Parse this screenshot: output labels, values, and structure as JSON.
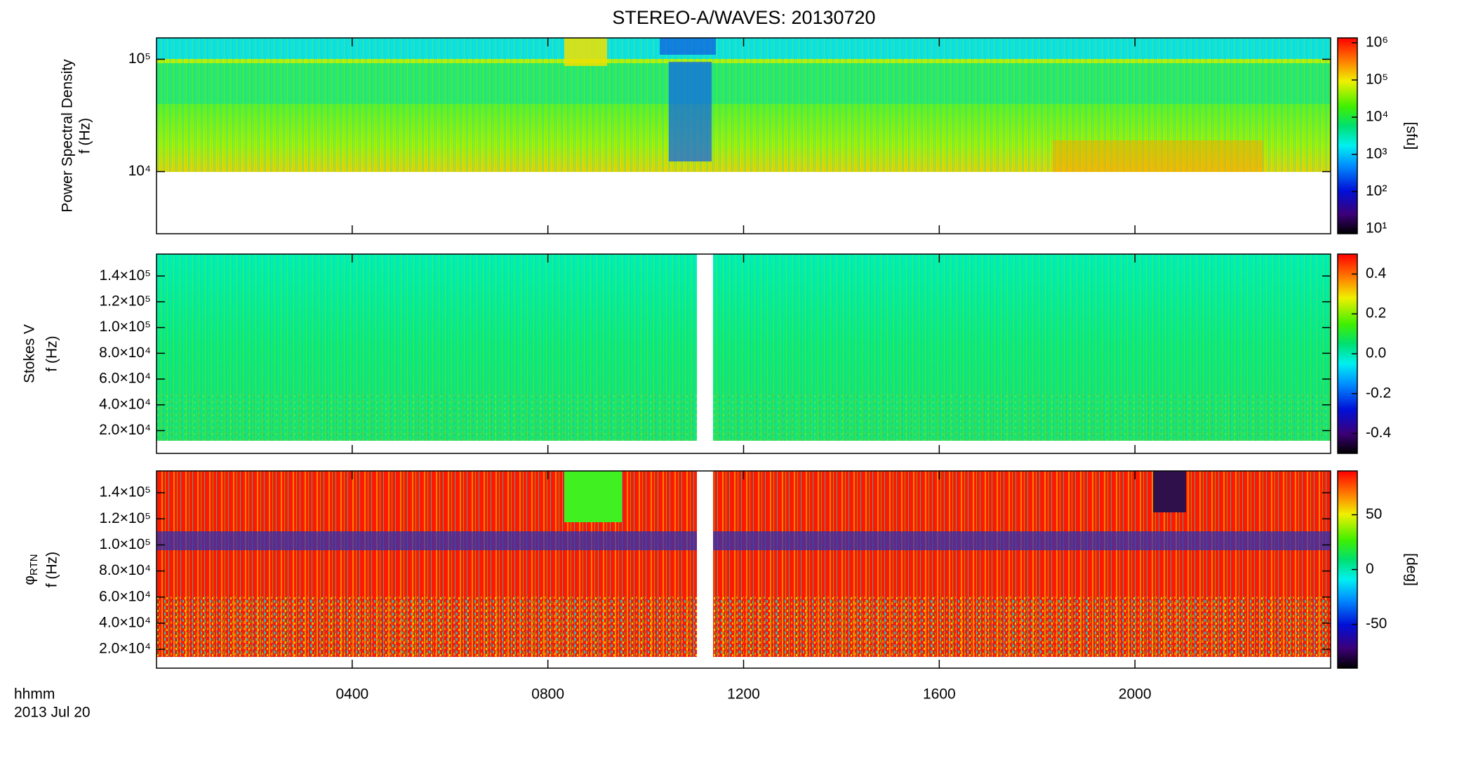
{
  "chart_data": [
    {
      "type": "heatmap",
      "title": "STEREO-A/WAVES: 20130720",
      "y_label": "Power Spectral Density",
      "y_unit_label": "f (Hz)",
      "ylog": true,
      "ylim": [
        2800,
        155000
      ],
      "yticks": [
        {
          "value": 10000,
          "label": "10⁴"
        },
        {
          "value": 100000,
          "label": "10⁵"
        }
      ],
      "colormap": "rainbow",
      "colorbar_log": true,
      "clim": [
        7.4,
        1350000
      ],
      "cticks": [
        {
          "value": 10,
          "label": "10¹"
        },
        {
          "value": 100,
          "label": "10²"
        },
        {
          "value": 1000,
          "label": "10³"
        },
        {
          "value": 10000,
          "label": "10⁴"
        },
        {
          "value": 100000,
          "label": "10⁵"
        },
        {
          "value": 1000000,
          "label": "10⁶"
        }
      ],
      "colorbar_label": "[sfu]"
    },
    {
      "type": "heatmap",
      "y_label": "Stokes V",
      "y_unit_label": "f (Hz)",
      "ylog": false,
      "ylim": [
        2300,
        157000
      ],
      "yticks": [
        {
          "value": 20000,
          "label": "2.0×10⁴"
        },
        {
          "value": 40000,
          "label": "4.0×10⁴"
        },
        {
          "value": 60000,
          "label": "6.0×10⁴"
        },
        {
          "value": 80000,
          "label": "8.0×10⁴"
        },
        {
          "value": 100000,
          "label": "1.0×10⁵"
        },
        {
          "value": 120000,
          "label": "1.2×10⁵"
        },
        {
          "value": 140000,
          "label": "1.4×10⁵"
        }
      ],
      "colormap": "rainbow",
      "colorbar_log": false,
      "clim": [
        -0.5,
        0.5
      ],
      "cticks": [
        -0.4,
        -0.2,
        {
          "value": 0,
          "label": "0.0"
        },
        0.2,
        0.4
      ]
    },
    {
      "type": "heatmap",
      "y_label": "φ",
      "y_label_sub": "RTN",
      "y_unit_label": "f (Hz)",
      "ylog": false,
      "ylim": [
        5500,
        156700
      ],
      "yticks": [
        {
          "value": 20000,
          "label": "2.0×10⁴"
        },
        {
          "value": 40000,
          "label": "4.0×10⁴"
        },
        {
          "value": 60000,
          "label": "6.0×10⁴"
        },
        {
          "value": 80000,
          "label": "8.0×10⁴"
        },
        {
          "value": 100000,
          "label": "1.0×10⁵"
        },
        {
          "value": 120000,
          "label": "1.2×10⁵"
        },
        {
          "value": 140000,
          "label": "1.4×10⁵"
        }
      ],
      "colormap": "rainbow",
      "colorbar_log": false,
      "clim": [
        -90,
        90
      ],
      "cticks": [
        -50,
        0,
        50
      ],
      "colorbar_label": "[deg]",
      "xlim": [
        0,
        24
      ],
      "xticks": [
        {
          "value": 4,
          "label": "0400"
        },
        {
          "value": 8,
          "label": "0800"
        },
        {
          "value": 12,
          "label": "1200"
        },
        {
          "value": 16,
          "label": "1600"
        },
        {
          "value": 20,
          "label": "2000"
        }
      ],
      "x_label": "hhmm",
      "x_date": "2013 Jul 20"
    }
  ]
}
